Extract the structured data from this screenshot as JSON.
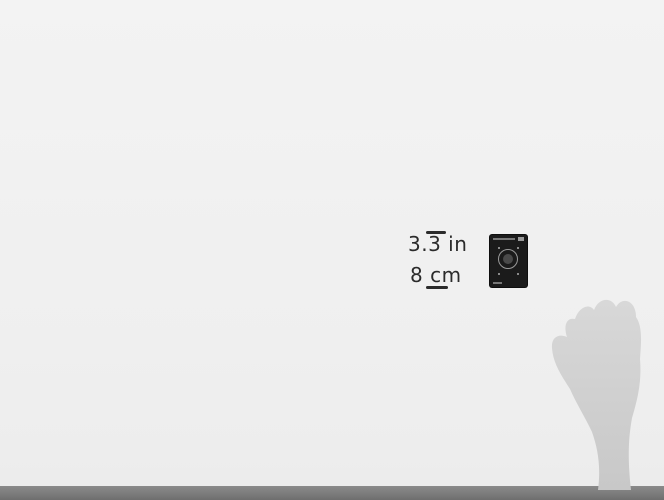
{
  "measurements": {
    "height_in": "3.3 in",
    "height_cm": "8 cm"
  },
  "icons": {
    "device": "thermostat-device-icon",
    "hand": "hand-silhouette-icon"
  },
  "colors": {
    "background": "#f1f1f1",
    "text": "#2b2b2b",
    "device": "#1b1b1b",
    "hand": "#cfcfcf",
    "counter": "#7a7a7a"
  }
}
